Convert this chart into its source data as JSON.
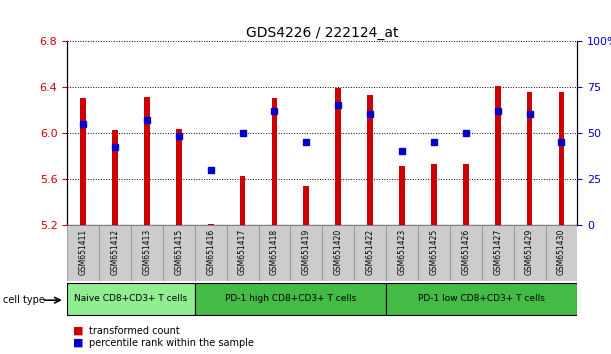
{
  "title": "GDS4226 / 222124_at",
  "samples": [
    "GSM651411",
    "GSM651412",
    "GSM651413",
    "GSM651415",
    "GSM651416",
    "GSM651417",
    "GSM651418",
    "GSM651419",
    "GSM651420",
    "GSM651422",
    "GSM651423",
    "GSM651425",
    "GSM651426",
    "GSM651427",
    "GSM651429",
    "GSM651430"
  ],
  "red_values": [
    6.3,
    6.02,
    6.31,
    6.03,
    5.21,
    5.62,
    6.3,
    5.54,
    6.39,
    6.33,
    5.71,
    5.73,
    5.73,
    6.41,
    6.35,
    6.35
  ],
  "blue_values": [
    55,
    42,
    57,
    48,
    30,
    50,
    62,
    45,
    65,
    60,
    40,
    45,
    50,
    62,
    60,
    45
  ],
  "ymin": 5.2,
  "ymax": 6.8,
  "yticks": [
    5.2,
    5.6,
    6.0,
    6.4,
    6.8
  ],
  "right_yticks": [
    0,
    25,
    50,
    75,
    100
  ],
  "right_yticklabels": [
    "0",
    "25",
    "50",
    "75",
    "100%"
  ],
  "bar_color": "#cc0000",
  "dot_color": "#0000cc",
  "bar_width": 0.18,
  "cell_groups_naive": {
    "label": "Naive CD8+CD3+ T cells",
    "start": 0,
    "end": 3,
    "color": "#90ee90"
  },
  "cell_groups_high": {
    "label": "PD-1 high CD8+CD3+ T cells",
    "start": 4,
    "end": 9,
    "color": "#44bb44"
  },
  "cell_groups_low": {
    "label": "PD-1 low CD8+CD3+ T cells",
    "start": 10,
    "end": 15,
    "color": "#44bb44"
  },
  "legend_red": "transformed count",
  "legend_blue": "percentile rank within the sample",
  "cell_type_label": "cell type",
  "axis_color_red": "#cc0000",
  "axis_color_blue": "#0000cc",
  "bg_white": "#ffffff",
  "tick_fontsize": 8,
  "title_fontsize": 10,
  "label_fontsize": 5.5,
  "group_fontsize": 6.5,
  "legend_fontsize": 7
}
